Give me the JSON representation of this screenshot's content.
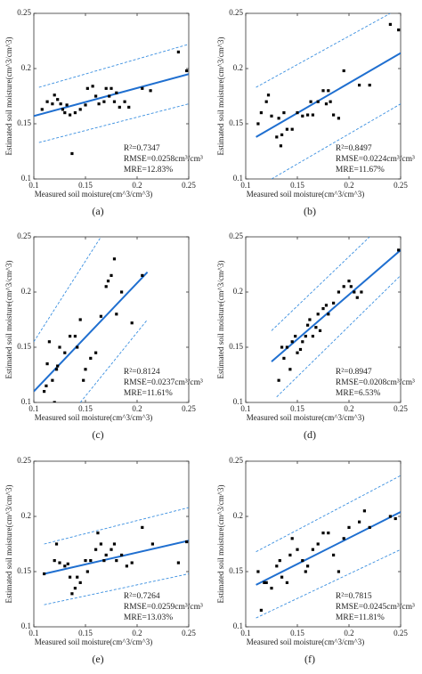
{
  "chart_data": [
    {
      "type": "scatter",
      "panel_label": "(a)",
      "x_label": "Measured soil moisture(cm^3/cm^3)",
      "y_label": "Estimated soil moisture(cm^3/cm^3)",
      "xlim": [
        0.1,
        0.25
      ],
      "ylim": [
        0.1,
        0.25
      ],
      "xticks": [
        0.1,
        0.15,
        0.2,
        0.25
      ],
      "yticks": [
        0.1,
        0.15,
        0.2,
        0.25
      ],
      "annotations": [
        "R²=0.7347",
        "RMSE=0.0258cm³/cm³",
        "MRE=12.83%"
      ],
      "color": "#000000",
      "x": [
        0.108,
        0.113,
        0.118,
        0.12,
        0.123,
        0.126,
        0.128,
        0.13,
        0.132,
        0.135,
        0.137,
        0.14,
        0.145,
        0.15,
        0.152,
        0.157,
        0.16,
        0.163,
        0.168,
        0.17,
        0.173,
        0.175,
        0.178,
        0.18,
        0.183,
        0.188,
        0.192,
        0.205,
        0.213,
        0.24,
        0.248
      ],
      "values": [
        0.163,
        0.17,
        0.168,
        0.176,
        0.172,
        0.168,
        0.163,
        0.16,
        0.167,
        0.158,
        0.123,
        0.16,
        0.163,
        0.167,
        0.182,
        0.184,
        0.175,
        0.168,
        0.17,
        0.182,
        0.175,
        0.182,
        0.17,
        0.178,
        0.165,
        0.17,
        0.165,
        0.182,
        0.18,
        0.215,
        0.198
      ],
      "fit": {
        "color": "#1f6fd0",
        "x": [
          0.1,
          0.25
        ],
        "y": [
          0.157,
          0.195
        ]
      },
      "bounds": [
        {
          "color": "#3a8fe0",
          "x": [
            0.105,
            0.25
          ],
          "y": [
            0.183,
            0.222
          ]
        },
        {
          "color": "#3a8fe0",
          "x": [
            0.105,
            0.25
          ],
          "y": [
            0.133,
            0.168
          ]
        }
      ]
    },
    {
      "type": "scatter",
      "panel_label": "(b)",
      "x_label": "Measured soil moisture(cm^3/cm^3)",
      "y_label": "Estimated soil moisture(cm^3/cm^3)",
      "xlim": [
        0.1,
        0.25
      ],
      "ylim": [
        0.1,
        0.25
      ],
      "xticks": [
        0.1,
        0.15,
        0.2,
        0.25
      ],
      "yticks": [
        0.1,
        0.15,
        0.2,
        0.25
      ],
      "annotations": [
        "R²=0.8497",
        "RMSE=0.0224cm³/cm³",
        "MRE=11.67%"
      ],
      "color": "#000000",
      "x": [
        0.112,
        0.115,
        0.12,
        0.122,
        0.125,
        0.13,
        0.132,
        0.134,
        0.135,
        0.137,
        0.14,
        0.145,
        0.15,
        0.155,
        0.16,
        0.163,
        0.165,
        0.17,
        0.175,
        0.178,
        0.18,
        0.182,
        0.185,
        0.19,
        0.195,
        0.21,
        0.22,
        0.24,
        0.248
      ],
      "values": [
        0.15,
        0.16,
        0.17,
        0.176,
        0.157,
        0.138,
        0.155,
        0.13,
        0.14,
        0.16,
        0.145,
        0.145,
        0.16,
        0.157,
        0.158,
        0.17,
        0.158,
        0.17,
        0.18,
        0.168,
        0.18,
        0.17,
        0.158,
        0.155,
        0.198,
        0.185,
        0.185,
        0.24,
        0.235
      ],
      "fit": {
        "color": "#1f6fd0",
        "x": [
          0.11,
          0.25
        ],
        "y": [
          0.138,
          0.214
        ]
      },
      "bounds": [
        {
          "color": "#3a8fe0",
          "x": [
            0.11,
            0.24
          ],
          "y": [
            0.183,
            0.25
          ]
        },
        {
          "color": "#3a8fe0",
          "x": [
            0.125,
            0.25
          ],
          "y": [
            0.1,
            0.168
          ]
        }
      ]
    },
    {
      "type": "scatter",
      "panel_label": "(c)",
      "x_label": "Measured soil moisture(cm^3/cm^3)",
      "y_label": "Estimated soil moisture(cm^3/cm^3)",
      "xlim": [
        0.1,
        0.25
      ],
      "ylim": [
        0.1,
        0.25
      ],
      "xticks": [
        0.1,
        0.15,
        0.2,
        0.25
      ],
      "yticks": [
        0.1,
        0.15,
        0.2,
        0.25
      ],
      "annotations": [
        "R²=0.8124",
        "RMSE=0.0237cm³/cm³",
        "MRE=11.61%"
      ],
      "color": "#000000",
      "x": [
        0.11,
        0.112,
        0.113,
        0.115,
        0.118,
        0.12,
        0.122,
        0.123,
        0.125,
        0.13,
        0.135,
        0.14,
        0.142,
        0.145,
        0.148,
        0.15,
        0.155,
        0.16,
        0.165,
        0.17,
        0.172,
        0.175,
        0.178,
        0.18,
        0.185,
        0.195,
        0.205
      ],
      "values": [
        0.11,
        0.115,
        0.135,
        0.155,
        0.12,
        0.1,
        0.13,
        0.133,
        0.15,
        0.145,
        0.16,
        0.16,
        0.15,
        0.175,
        0.12,
        0.13,
        0.14,
        0.145,
        0.178,
        0.205,
        0.21,
        0.215,
        0.23,
        0.18,
        0.2,
        0.172,
        0.215
      ],
      "fit": {
        "color": "#1f6fd0",
        "x": [
          0.1,
          0.21
        ],
        "y": [
          0.11,
          0.218
        ]
      },
      "bounds": [
        {
          "color": "#3a8fe0",
          "x": [
            0.1,
            0.165
          ],
          "y": [
            0.155,
            0.25
          ]
        },
        {
          "color": "#3a8fe0",
          "x": [
            0.145,
            0.21
          ],
          "y": [
            0.1,
            0.175
          ]
        }
      ]
    },
    {
      "type": "scatter",
      "panel_label": "(d)",
      "x_label": "Measured soil moisture(cm^3/cm^3)",
      "y_label": "Estimated soil moisture(cm^3/cm^3)",
      "xlim": [
        0.1,
        0.25
      ],
      "ylim": [
        0.1,
        0.25
      ],
      "xticks": [
        0.1,
        0.15,
        0.2,
        0.25
      ],
      "yticks": [
        0.1,
        0.15,
        0.2,
        0.25
      ],
      "annotations": [
        "R²=0.8947",
        "RMSE=0.0208cm³/cm³",
        "MRE=6.53%"
      ],
      "color": "#000000",
      "x": [
        0.132,
        0.135,
        0.137,
        0.14,
        0.143,
        0.145,
        0.148,
        0.15,
        0.153,
        0.155,
        0.158,
        0.16,
        0.162,
        0.165,
        0.168,
        0.17,
        0.172,
        0.175,
        0.178,
        0.18,
        0.185,
        0.19,
        0.195,
        0.2,
        0.202,
        0.205,
        0.208,
        0.212,
        0.248
      ],
      "values": [
        0.12,
        0.15,
        0.14,
        0.15,
        0.13,
        0.155,
        0.16,
        0.145,
        0.148,
        0.155,
        0.16,
        0.17,
        0.175,
        0.16,
        0.168,
        0.18,
        0.165,
        0.185,
        0.188,
        0.18,
        0.19,
        0.2,
        0.205,
        0.21,
        0.205,
        0.2,
        0.195,
        0.2,
        0.238
      ],
      "fit": {
        "color": "#1f6fd0",
        "x": [
          0.125,
          0.25
        ],
        "y": [
          0.137,
          0.238
        ]
      },
      "bounds": [
        {
          "color": "#3a8fe0",
          "x": [
            0.125,
            0.22
          ],
          "y": [
            0.165,
            0.25
          ]
        },
        {
          "color": "#3a8fe0",
          "x": [
            0.13,
            0.25
          ],
          "y": [
            0.105,
            0.215
          ]
        }
      ]
    },
    {
      "type": "scatter",
      "panel_label": "(e)",
      "x_label": "Measured soil moisture(cm^3/cm^3)",
      "y_label": "Estimated soil moisture(cm^3/cm^3)",
      "xlim": [
        0.1,
        0.25
      ],
      "ylim": [
        0.1,
        0.25
      ],
      "xticks": [
        0.1,
        0.15,
        0.2,
        0.25
      ],
      "yticks": [
        0.1,
        0.15,
        0.2,
        0.25
      ],
      "annotations": [
        "R²=0.7264",
        "RMSE=0.0259cm³/cm³",
        "MRE=13.03%"
      ],
      "color": "#000000",
      "x": [
        0.11,
        0.12,
        0.122,
        0.125,
        0.13,
        0.133,
        0.135,
        0.137,
        0.14,
        0.142,
        0.145,
        0.15,
        0.152,
        0.155,
        0.16,
        0.162,
        0.165,
        0.168,
        0.17,
        0.175,
        0.178,
        0.18,
        0.185,
        0.19,
        0.195,
        0.205,
        0.215,
        0.24,
        0.248
      ],
      "values": [
        0.148,
        0.16,
        0.175,
        0.158,
        0.155,
        0.157,
        0.145,
        0.13,
        0.135,
        0.145,
        0.14,
        0.16,
        0.15,
        0.16,
        0.17,
        0.185,
        0.175,
        0.16,
        0.165,
        0.17,
        0.175,
        0.16,
        0.165,
        0.155,
        0.158,
        0.19,
        0.175,
        0.158,
        0.177
      ],
      "fit": {
        "color": "#1f6fd0",
        "x": [
          0.11,
          0.25
        ],
        "y": [
          0.148,
          0.178
        ]
      },
      "bounds": [
        {
          "color": "#3a8fe0",
          "x": [
            0.11,
            0.25
          ],
          "y": [
            0.175,
            0.208
          ]
        },
        {
          "color": "#3a8fe0",
          "x": [
            0.11,
            0.25
          ],
          "y": [
            0.12,
            0.148
          ]
        }
      ]
    },
    {
      "type": "scatter",
      "panel_label": "(f)",
      "x_label": "Measured soil moisture(cm^3/cm^3)",
      "y_label": "Estimated soil moisture(cm^3/cm^3)",
      "xlim": [
        0.1,
        0.25
      ],
      "ylim": [
        0.1,
        0.25
      ],
      "xticks": [
        0.1,
        0.15,
        0.2,
        0.25
      ],
      "yticks": [
        0.1,
        0.15,
        0.2,
        0.25
      ],
      "annotations": [
        "R²=0.7815",
        "RMSE=0.0245cm³/cm³",
        "MRE=11.81%"
      ],
      "color": "#000000",
      "x": [
        0.112,
        0.115,
        0.118,
        0.12,
        0.125,
        0.13,
        0.133,
        0.135,
        0.14,
        0.143,
        0.145,
        0.15,
        0.155,
        0.158,
        0.16,
        0.165,
        0.17,
        0.175,
        0.18,
        0.185,
        0.19,
        0.195,
        0.2,
        0.21,
        0.215,
        0.22,
        0.24,
        0.245
      ],
      "values": [
        0.15,
        0.115,
        0.14,
        0.14,
        0.135,
        0.155,
        0.16,
        0.145,
        0.14,
        0.165,
        0.18,
        0.17,
        0.16,
        0.15,
        0.155,
        0.17,
        0.175,
        0.185,
        0.185,
        0.165,
        0.15,
        0.18,
        0.19,
        0.195,
        0.205,
        0.19,
        0.2,
        0.198
      ],
      "fit": {
        "color": "#1f6fd0",
        "x": [
          0.11,
          0.25
        ],
        "y": [
          0.138,
          0.204
        ]
      },
      "bounds": [
        {
          "color": "#3a8fe0",
          "x": [
            0.11,
            0.25
          ],
          "y": [
            0.168,
            0.237
          ]
        },
        {
          "color": "#3a8fe0",
          "x": [
            0.11,
            0.25
          ],
          "y": [
            0.108,
            0.17
          ]
        }
      ]
    }
  ]
}
